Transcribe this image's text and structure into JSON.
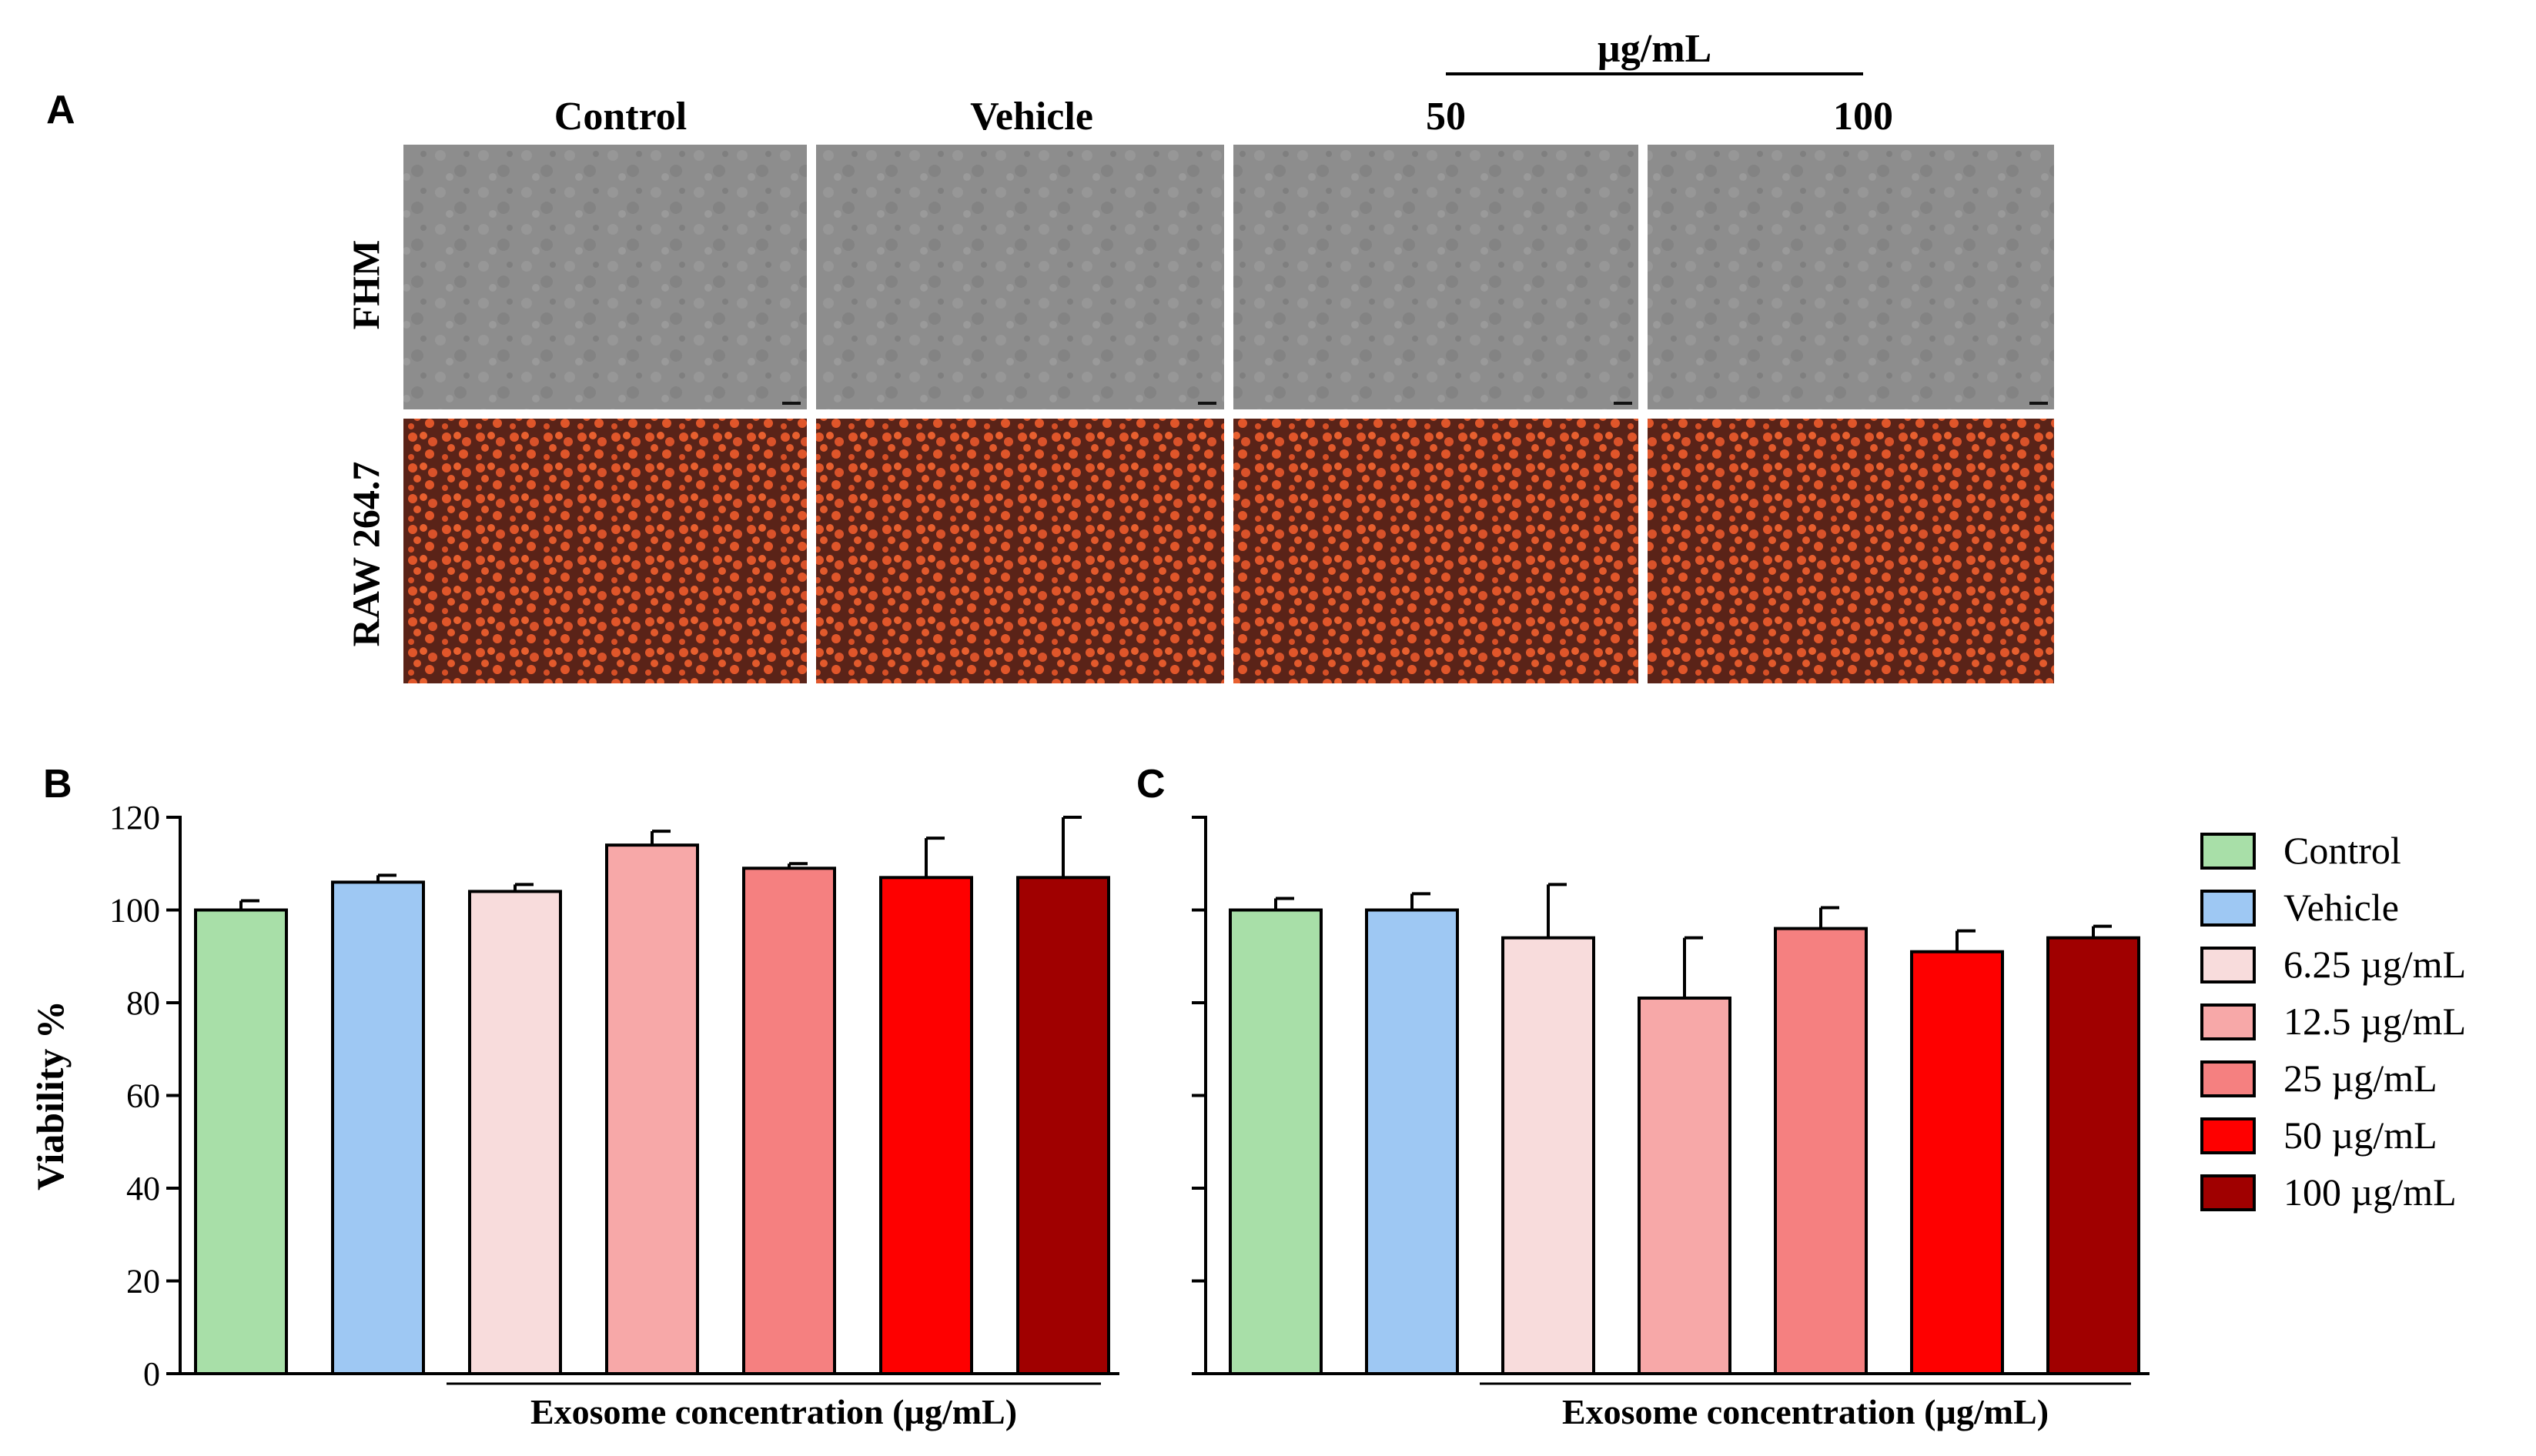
{
  "panel_a": {
    "label": "A",
    "unit_header": "µg/mL",
    "columns": [
      "Control",
      "Vehicle",
      "50",
      "100"
    ],
    "rows": [
      "FHM",
      "RAW 264.7"
    ],
    "colors": {
      "fhm_bg": "#8c8c8c",
      "raw_bg": "#5a2318",
      "raw_cells": "#e0562a"
    }
  },
  "chart_data": [
    {
      "type": "bar",
      "panel": "B",
      "categories": [
        "Control",
        "Vehicle",
        "6.25 µg/mL",
        "12.5 µg/mL",
        "25 µg/mL",
        "50 µg/mL",
        "100 µg/mL"
      ],
      "values": [
        100,
        106,
        104,
        114,
        109,
        107,
        107
      ],
      "errors": [
        2,
        1.5,
        1.5,
        3,
        1,
        8.5,
        13
      ],
      "ylabel": "Viability %",
      "xlabel": "Exosome concentration  (µg/mL)",
      "ylim": [
        0,
        120
      ],
      "yticks": [
        0,
        20,
        40,
        60,
        80,
        100,
        120
      ],
      "show_tick_labels": true
    },
    {
      "type": "bar",
      "panel": "C",
      "categories": [
        "Control",
        "Vehicle",
        "6.25 µg/mL",
        "12.5 µg/mL",
        "25 µg/mL",
        "50 µg/mL",
        "100 µg/mL"
      ],
      "values": [
        100,
        100,
        94,
        81,
        96,
        91,
        94
      ],
      "errors": [
        2.5,
        3.5,
        11.5,
        13,
        4.5,
        4.5,
        2.5
      ],
      "ylabel": "",
      "xlabel": "Exosome concentration  (µg/mL)",
      "ylim": [
        0,
        120
      ],
      "yticks": [
        0,
        20,
        40,
        60,
        80,
        100,
        120
      ],
      "show_tick_labels": false
    }
  ],
  "legend": {
    "items": [
      {
        "label": "Control",
        "color": "#a8dfa8"
      },
      {
        "label": "Vehicle",
        "color": "#9ec8f3"
      },
      {
        "label": "6.25 µg/mL",
        "color": "#f8dcdc"
      },
      {
        "label": "12.5 µg/mL",
        "color": "#f7a8a8"
      },
      {
        "label": "25 µg/mL",
        "color": "#f58080"
      },
      {
        "label": "50 µg/mL",
        "color": "#fe0000"
      },
      {
        "label": "100 µg/mL",
        "color": "#a00000"
      }
    ]
  }
}
